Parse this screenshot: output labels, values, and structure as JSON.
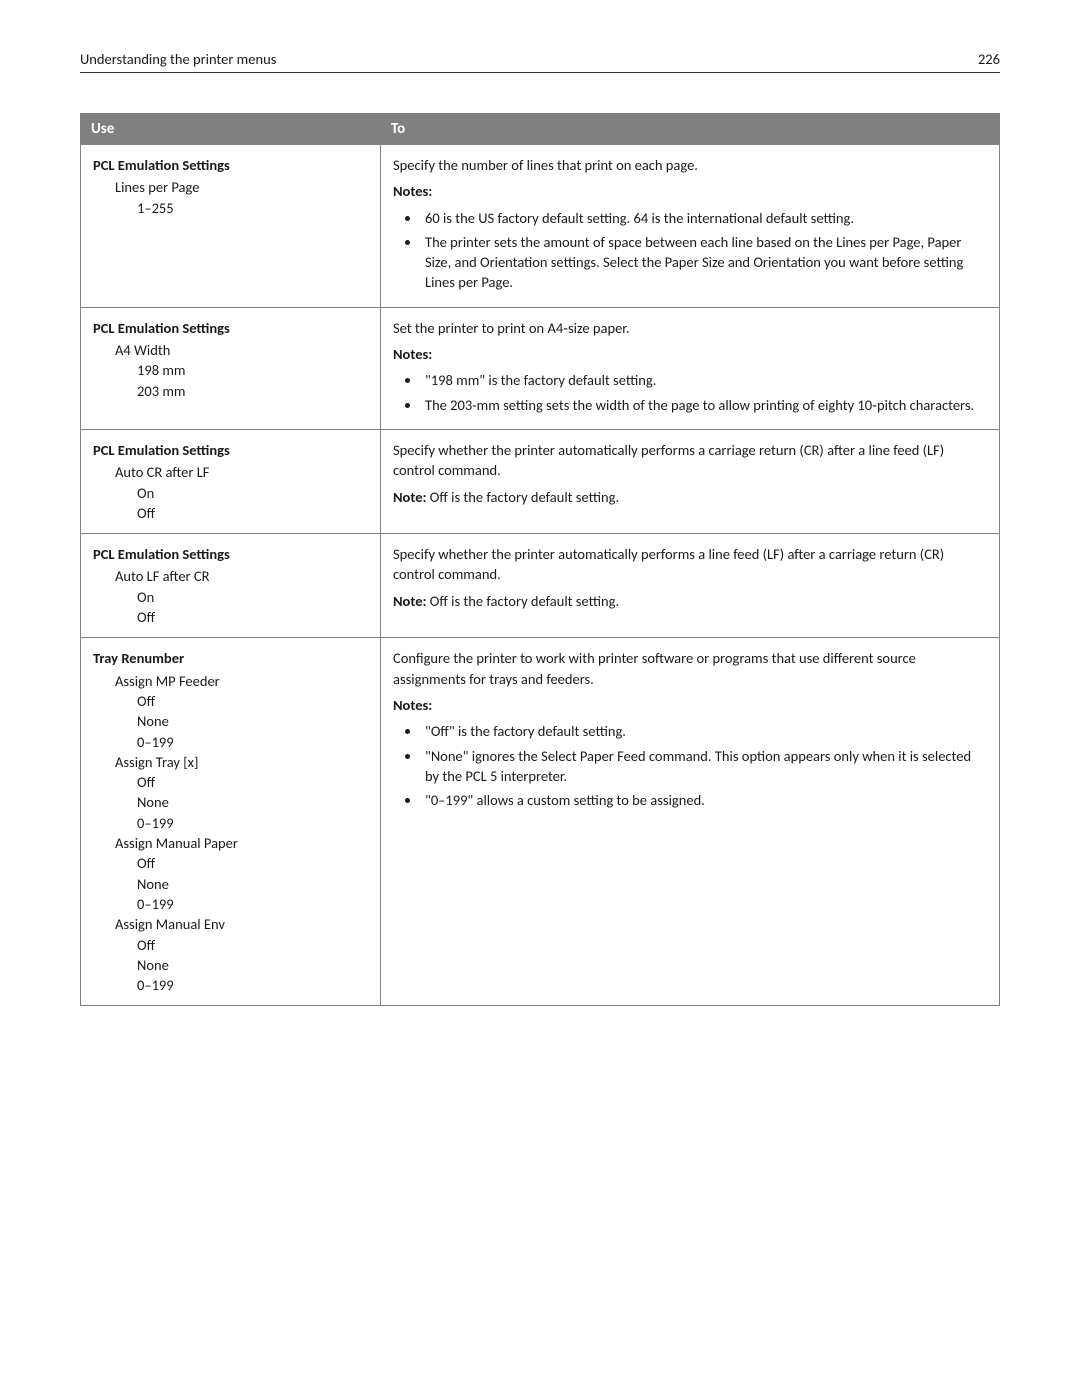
{
  "header": {
    "title": "Understanding the printer menus",
    "page_number": "226"
  },
  "table": {
    "columns": [
      "Use",
      "To"
    ],
    "rows": [
      {
        "use": {
          "title": "PCL Emulation Settings",
          "sub": "Lines per Page",
          "sub2": [
            "1–255"
          ]
        },
        "to": {
          "intro": "Specify the number of lines that print on each page.",
          "notes_label": "Notes:",
          "bullets": [
            "60 is the US factory default setting. 64 is the international default setting.",
            "The printer sets the amount of space between each line based on the Lines per Page, Paper Size, and Orientation settings. Select the Paper Size and Orientation you want before setting Lines per Page."
          ]
        }
      },
      {
        "use": {
          "title": "PCL Emulation Settings",
          "sub": "A4 Width",
          "sub2": [
            "198 mm",
            "203 mm"
          ]
        },
        "to": {
          "intro": "Set the printer to print on A4‑size paper.",
          "notes_label": "Notes:",
          "bullets": [
            "\"198 mm\" is the factory default setting.",
            "The 203-mm setting sets the width of the page to allow printing of eighty 10‑pitch characters."
          ]
        }
      },
      {
        "use": {
          "title": "PCL Emulation Settings",
          "sub": "Auto CR after LF",
          "sub2": [
            "On",
            "Off"
          ]
        },
        "to": {
          "intro": "Specify whether the printer automatically performs a carriage return (CR) after a line feed (LF) control command.",
          "note_label": "Note:",
          "note_text": " Off is the factory default setting."
        }
      },
      {
        "use": {
          "title": "PCL Emulation Settings",
          "sub": "Auto LF after CR",
          "sub2": [
            "On",
            "Off"
          ]
        },
        "to": {
          "intro": "Specify whether the printer automatically performs a line feed (LF) after a carriage return (CR) control command.",
          "note_label": "Note:",
          "note_text": " Off is the factory default setting."
        }
      },
      {
        "use": {
          "title": "Tray Renumber",
          "groups": [
            {
              "label": "Assign MP Feeder",
              "options": [
                "Off",
                "None",
                "0–199"
              ]
            },
            {
              "label": "Assign Tray [x]",
              "options": [
                "Off",
                "None",
                "0–199"
              ]
            },
            {
              "label": "Assign Manual Paper",
              "options": [
                "Off",
                "None",
                "0–199"
              ]
            },
            {
              "label": "Assign Manual Env",
              "options": [
                "Off",
                "None",
                "0–199"
              ]
            }
          ]
        },
        "to": {
          "intro": "Configure the printer to work with printer software or programs that use different source assignments for trays and feeders.",
          "notes_label": "Notes:",
          "bullets": [
            "\"Off\" is the factory default setting.",
            "\"None\" ignores the Select Paper Feed command. This option appears only when it is selected by the PCL 5 interpreter.",
            "\"0–199\" allows a custom setting to be assigned."
          ]
        }
      }
    ]
  }
}
